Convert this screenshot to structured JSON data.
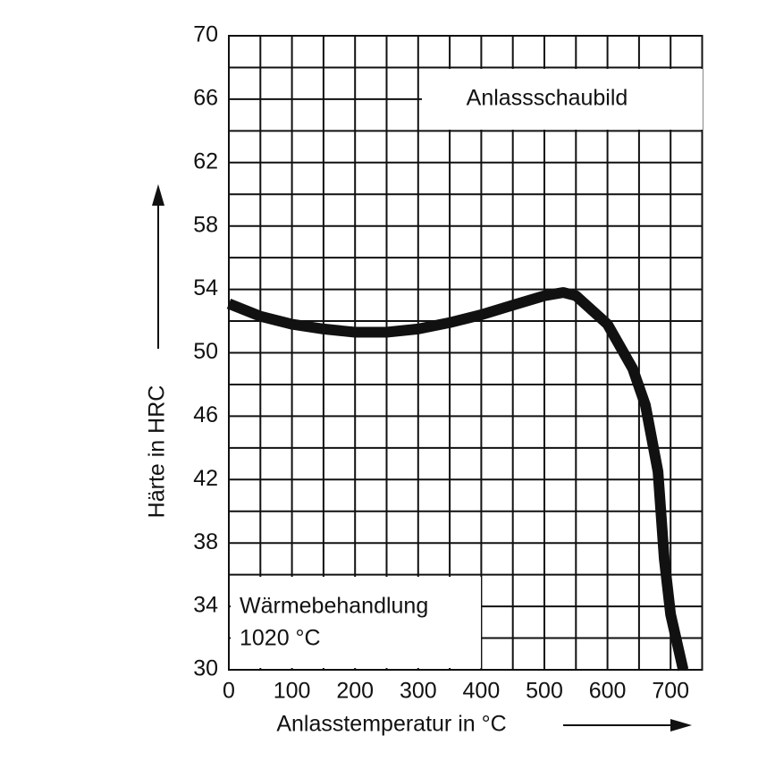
{
  "chart_data": {
    "type": "line",
    "x_label": "Anlasstemperatur in °C",
    "y_label": "Härte in HRC",
    "annotations": [
      "Anlassschaubild",
      "Wärmebehandlung",
      "1020 °C"
    ],
    "x": [
      0,
      50,
      100,
      150,
      200,
      250,
      300,
      350,
      400,
      450,
      500,
      530,
      550,
      600,
      640,
      660,
      680,
      690,
      700,
      720
    ],
    "series": [
      {
        "color": "#111111",
        "values": [
          53.1,
          52.3,
          51.8,
          51.5,
          51.3,
          51.3,
          51.5,
          51.9,
          52.4,
          53.0,
          53.6,
          53.8,
          53.6,
          51.8,
          49.0,
          46.7,
          42.5,
          37.0,
          33.5,
          30.0
        ]
      }
    ],
    "xlim": [
      0,
      750
    ],
    "ylim": [
      30,
      70
    ],
    "xticks": [
      0,
      100,
      200,
      300,
      400,
      500,
      600,
      700
    ],
    "yticks": [
      30,
      34,
      38,
      42,
      46,
      50,
      54,
      58,
      62,
      66,
      70
    ],
    "grid": true,
    "minor_grid": true
  }
}
